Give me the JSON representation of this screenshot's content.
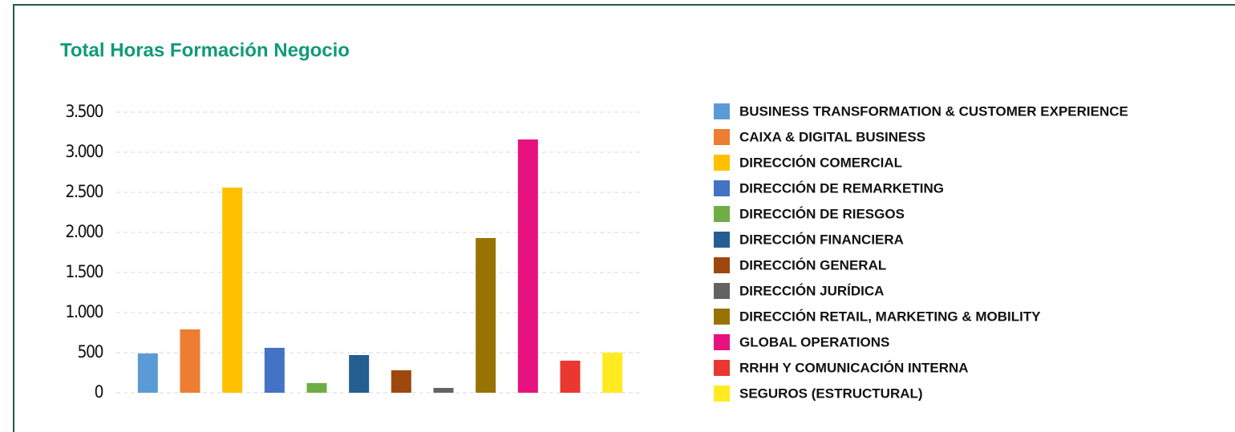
{
  "chart_data": {
    "type": "bar",
    "title": "Total Horas Formación Negocio",
    "categories": [
      "BUSINESS TRANSFORMATION & CUSTOMER EXPERIENCE",
      "CAIXA & DIGITAL BUSINESS",
      "DIRECCIÓN COMERCIAL",
      "DIRECCIÓN DE REMARKETING",
      "DIRECCIÓN DE RIESGOS",
      "DIRECCIÓN FINANCIERA",
      "DIRECCIÓN GENERAL",
      "DIRECCIÓN JURÍDICA",
      "DIRECCIÓN RETAIL, MARKETING & MOBILITY",
      "GLOBAL OPERATIONS",
      "RRHH Y COMUNICACIÓN INTERNA",
      "SEGUROS (ESTRUCTURAL)"
    ],
    "values": [
      490,
      790,
      2560,
      560,
      120,
      470,
      280,
      60,
      1930,
      3160,
      400,
      500
    ],
    "colors": [
      "#5b9bd5",
      "#ed7d31",
      "#ffc000",
      "#4472c4",
      "#70ad47",
      "#255e91",
      "#9e480e",
      "#636363",
      "#997300",
      "#e6127f",
      "#e8382f",
      "#ffeb1f"
    ],
    "ylim": [
      0,
      3500
    ],
    "yticks": [
      0,
      500,
      {
        "value": 1000,
        "label": "1.000"
      },
      {
        "value": 1500,
        "label": "1.500"
      },
      {
        "value": 2000,
        "label": "2.000"
      },
      {
        "value": 2500,
        "label": "2.500"
      },
      {
        "value": 3000,
        "label": "3.000"
      },
      {
        "value": 3500,
        "label": "3.500"
      }
    ],
    "grid": true,
    "legend": "right"
  }
}
